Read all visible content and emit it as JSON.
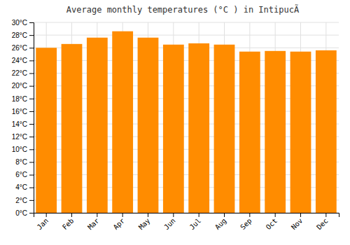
{
  "chart_data": {
    "type": "bar",
    "title": "Average monthly temperatures (°C ) in IntipucÃ",
    "categories": [
      "Jan",
      "Feb",
      "Mar",
      "Apr",
      "May",
      "Jun",
      "Jul",
      "Aug",
      "Sep",
      "Oct",
      "Nov",
      "Dec"
    ],
    "values": [
      26.0,
      26.6,
      27.6,
      28.6,
      27.6,
      26.5,
      26.7,
      26.5,
      25.4,
      25.5,
      25.4,
      25.6
    ],
    "color": "#FF8C00",
    "ylim": [
      0,
      30
    ],
    "yticks": [
      {
        "value": 0,
        "label": "0°C"
      },
      {
        "value": 2,
        "label": "2°C"
      },
      {
        "value": 4,
        "label": "4°C"
      },
      {
        "value": 6,
        "label": "6°C"
      },
      {
        "value": 8,
        "label": "8°C"
      },
      {
        "value": 10,
        "label": "10°C"
      },
      {
        "value": 12,
        "label": "12°C"
      },
      {
        "value": 14,
        "label": "14°C"
      },
      {
        "value": 16,
        "label": "16°C"
      },
      {
        "value": 18,
        "label": "18°C"
      },
      {
        "value": 20,
        "label": "20°C"
      },
      {
        "value": 22,
        "label": "22°C"
      },
      {
        "value": 24,
        "label": "24°C"
      },
      {
        "value": 26,
        "label": "26°C"
      },
      {
        "value": 28,
        "label": "28°C"
      },
      {
        "value": 30,
        "label": "30°C"
      }
    ],
    "grid": true
  }
}
